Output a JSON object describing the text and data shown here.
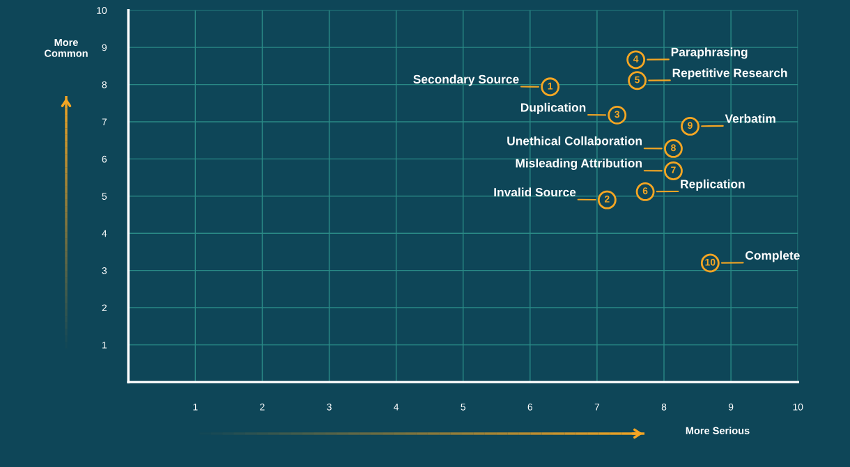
{
  "chart_data": {
    "type": "scatter",
    "xlabel": "More Serious",
    "ylabel": "More\nCommon",
    "xlim": [
      0,
      10
    ],
    "ylim": [
      0,
      10
    ],
    "xticks": [
      1,
      2,
      3,
      4,
      5,
      6,
      7,
      8,
      9,
      10
    ],
    "yticks": [
      1,
      2,
      3,
      4,
      5,
      6,
      7,
      8,
      9,
      10
    ],
    "grid": true,
    "marker": "circle",
    "series": [
      {
        "color": "#f5a623",
        "x": [
          6.3,
          7.15,
          7.3,
          7.58,
          7.6,
          7.72,
          8.14,
          8.14,
          8.39,
          8.69
        ],
        "values": [
          7.94,
          4.9,
          7.18,
          8.67,
          8.11,
          5.12,
          5.68,
          6.28,
          6.88,
          3.2
        ]
      }
    ],
    "annotations": [
      {
        "text": "1",
        "x": 6.3,
        "y": 7.94
      },
      {
        "text": "Secondary Source",
        "x": 6.3,
        "y": 7.94
      },
      {
        "text": "2",
        "x": 7.15,
        "y": 4.9
      },
      {
        "text": "Invalid Source",
        "x": 7.15,
        "y": 4.9
      },
      {
        "text": "3",
        "x": 7.3,
        "y": 7.18
      },
      {
        "text": "Duplication",
        "x": 7.3,
        "y": 7.18
      },
      {
        "text": "4",
        "x": 7.58,
        "y": 8.67
      },
      {
        "text": "Paraphrasing",
        "x": 7.58,
        "y": 8.67
      },
      {
        "text": "5",
        "x": 7.6,
        "y": 8.11
      },
      {
        "text": "Repetitive Research",
        "x": 7.6,
        "y": 8.11
      },
      {
        "text": "6",
        "x": 7.72,
        "y": 5.12
      },
      {
        "text": "Replication",
        "x": 7.72,
        "y": 5.12
      },
      {
        "text": "7",
        "x": 8.14,
        "y": 5.68
      },
      {
        "text": "Misleading Attribution",
        "x": 8.14,
        "y": 5.68
      },
      {
        "text": "8",
        "x": 8.14,
        "y": 6.28
      },
      {
        "text": "Unethical Collaboration",
        "x": 8.14,
        "y": 6.28
      },
      {
        "text": "9",
        "x": 8.39,
        "y": 6.88
      },
      {
        "text": "Verbatim",
        "x": 8.39,
        "y": 6.88
      },
      {
        "text": "10",
        "x": 8.69,
        "y": 3.2
      },
      {
        "text": "Complete",
        "x": 8.69,
        "y": 3.2
      }
    ]
  }
}
